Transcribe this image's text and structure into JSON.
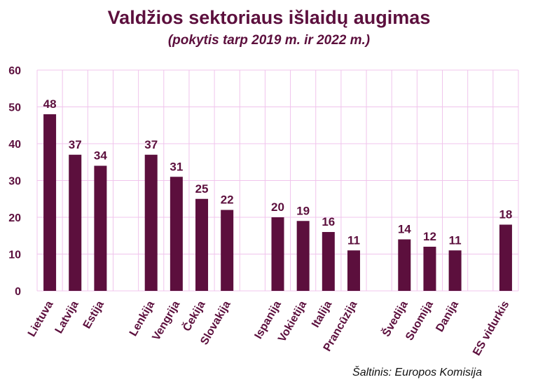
{
  "chart_data": {
    "type": "bar",
    "title": "Valdžios sektoriaus išlaidų augimas",
    "subtitle": "(pokytis tarp 2019 m. ir 2022 m.)",
    "xlabel": "",
    "ylabel": "",
    "ylim": [
      0,
      60
    ],
    "yticks": [
      0,
      10,
      20,
      30,
      40,
      50,
      60
    ],
    "grid": true,
    "categories": [
      "Lietuva",
      "Latvija",
      "Estija",
      "",
      "Lenkija",
      "Vengrija",
      "Čekija",
      "Slovakija",
      "",
      "Ispanija",
      "Vokietija",
      "Italija",
      "Prancūzija",
      "",
      "Švedija",
      "Suomija",
      "Danija",
      "",
      "ES vidurkis"
    ],
    "values": [
      48,
      37,
      34,
      null,
      37,
      31,
      25,
      22,
      null,
      20,
      19,
      16,
      11,
      null,
      14,
      12,
      11,
      null,
      18
    ],
    "value_labels": [
      "48",
      "37",
      "34",
      null,
      "37",
      "31",
      "25",
      "22",
      null,
      "20",
      "19",
      "16",
      "11",
      null,
      "14",
      "12",
      "11",
      null,
      "18"
    ],
    "bar_color": "#5c0f3d",
    "grid_color": "#f0c4ec",
    "text_color": "#5c0f3d"
  },
  "source": "Šaltinis: Europos Komisija"
}
